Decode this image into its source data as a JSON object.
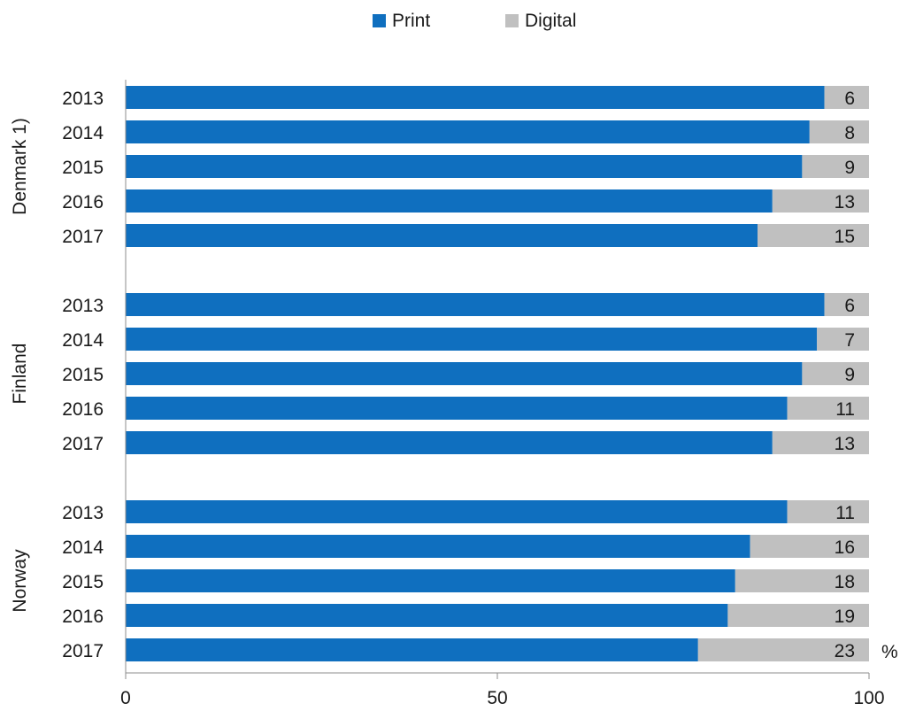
{
  "chart_data": {
    "type": "bar",
    "orientation": "horizontal",
    "stacked": true,
    "unit_label": "%",
    "xlim": [
      0,
      100
    ],
    "x_ticks": [
      0,
      50,
      100
    ],
    "legend": {
      "position": "top",
      "entries": [
        {
          "name": "Print",
          "color": "#0f6fbf"
        },
        {
          "name": "Digital",
          "color": "#c0c0c0"
        }
      ]
    },
    "grid": false,
    "groups": [
      {
        "name": "Denmark 1)",
        "rows": [
          {
            "year": "2013",
            "print": 94,
            "digital": 6
          },
          {
            "year": "2014",
            "print": 92,
            "digital": 8
          },
          {
            "year": "2015",
            "print": 91,
            "digital": 9
          },
          {
            "year": "2016",
            "print": 87,
            "digital": 13
          },
          {
            "year": "2017",
            "print": 85,
            "digital": 15
          }
        ]
      },
      {
        "name": "Finland",
        "rows": [
          {
            "year": "2013",
            "print": 94,
            "digital": 6
          },
          {
            "year": "2014",
            "print": 93,
            "digital": 7
          },
          {
            "year": "2015",
            "print": 91,
            "digital": 9
          },
          {
            "year": "2016",
            "print": 89,
            "digital": 11
          },
          {
            "year": "2017",
            "print": 87,
            "digital": 13
          }
        ]
      },
      {
        "name": "Norway",
        "rows": [
          {
            "year": "2013",
            "print": 89,
            "digital": 11
          },
          {
            "year": "2014",
            "print": 84,
            "digital": 16
          },
          {
            "year": "2015",
            "print": 82,
            "digital": 18
          },
          {
            "year": "2016",
            "print": 81,
            "digital": 19
          },
          {
            "year": "2017",
            "print": 77,
            "digital": 23
          }
        ]
      }
    ]
  }
}
